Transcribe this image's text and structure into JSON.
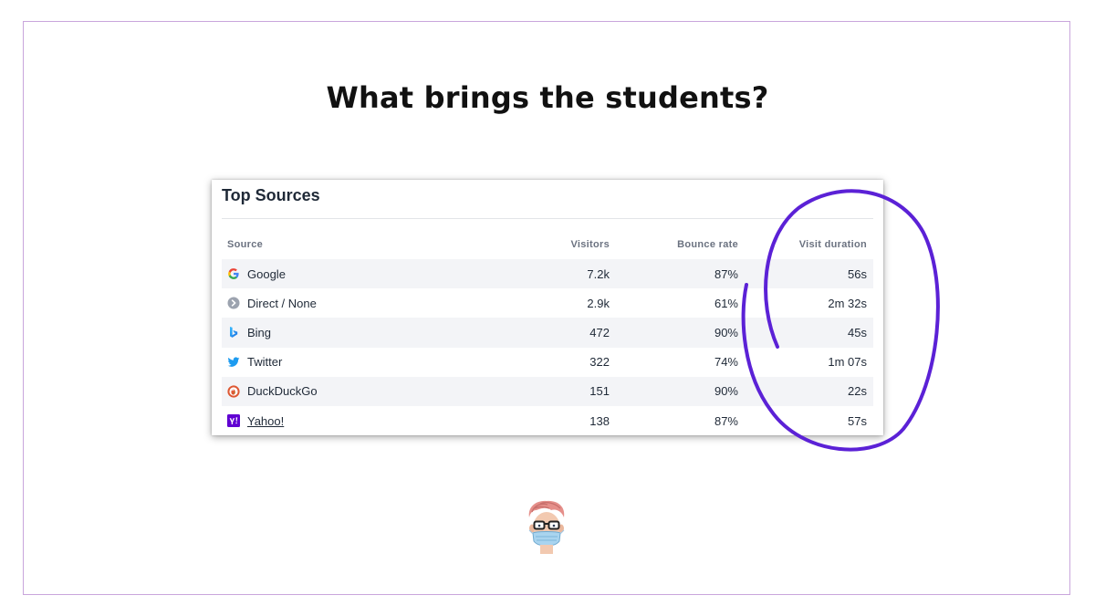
{
  "slide": {
    "title": "What brings the students?"
  },
  "card": {
    "title": "Top Sources",
    "columns": {
      "source": "Source",
      "visitors": "Visitors",
      "bounce_rate": "Bounce rate",
      "visit_duration": "Visit duration"
    },
    "rows": [
      {
        "source": "Google",
        "icon": "google-icon",
        "visitors": "7.2k",
        "bounce_rate": "87%",
        "visit_duration": "56s"
      },
      {
        "source": "Direct / None",
        "icon": "direct-icon",
        "visitors": "2.9k",
        "bounce_rate": "61%",
        "visit_duration": "2m 32s"
      },
      {
        "source": "Bing",
        "icon": "bing-icon",
        "visitors": "472",
        "bounce_rate": "90%",
        "visit_duration": "45s"
      },
      {
        "source": "Twitter",
        "icon": "twitter-icon",
        "visitors": "322",
        "bounce_rate": "74%",
        "visit_duration": "1m 07s"
      },
      {
        "source": "DuckDuckGo",
        "icon": "duckduckgo-icon",
        "visitors": "151",
        "bounce_rate": "90%",
        "visit_duration": "22s"
      },
      {
        "source": "Yahoo!",
        "icon": "yahoo-icon",
        "visitors": "138",
        "bounce_rate": "87%",
        "visit_duration": "57s"
      }
    ]
  },
  "colors": {
    "annotation": "#5b21d6",
    "frame_border": "#c9a6dc",
    "row_shade": "#f3f4f7"
  }
}
